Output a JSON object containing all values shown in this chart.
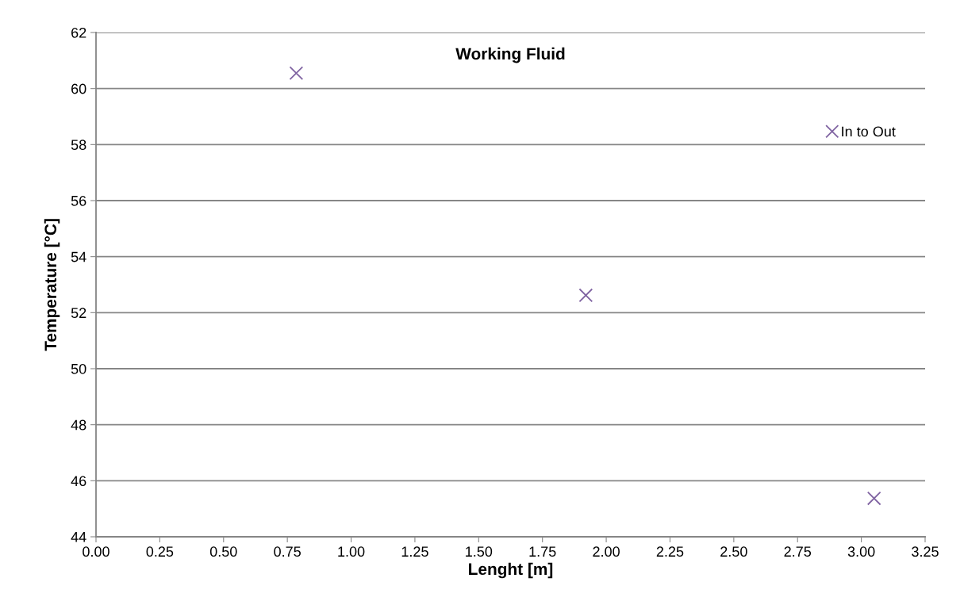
{
  "chart_data": {
    "type": "scatter",
    "title": "Working Fluid",
    "xlabel": "Lenght [m]",
    "ylabel": "Temperature [°C]",
    "series": [
      {
        "name": "In to Out",
        "color": "#8064a2",
        "x": [
          0.785,
          1.92,
          3.05
        ],
        "values": [
          60.55,
          52.62,
          45.37
        ]
      }
    ],
    "marker": "cross",
    "xlim": [
      0,
      3.25
    ],
    "ylim": [
      44,
      62
    ],
    "xticks": [
      {
        "value": 0,
        "label": "0.00"
      },
      {
        "value": 0.25,
        "label": "0.25"
      },
      {
        "value": 0.5,
        "label": "0.50"
      },
      {
        "value": 0.75,
        "label": "0.75"
      },
      {
        "value": 1,
        "label": "1.00"
      },
      {
        "value": 1.25,
        "label": "1.25"
      },
      {
        "value": 1.5,
        "label": "1.50"
      },
      {
        "value": 1.75,
        "label": "1.75"
      },
      {
        "value": 2,
        "label": "2.00"
      },
      {
        "value": 2.25,
        "label": "2.25"
      },
      {
        "value": 2.5,
        "label": "2.50"
      },
      {
        "value": 2.75,
        "label": "2.75"
      },
      {
        "value": 3,
        "label": "3.00"
      },
      {
        "value": 3.25,
        "label": "3.25"
      }
    ],
    "yticks": [
      44,
      46,
      48,
      50,
      52,
      54,
      56,
      58,
      60,
      62
    ],
    "grid": "y",
    "legend": "top right"
  }
}
